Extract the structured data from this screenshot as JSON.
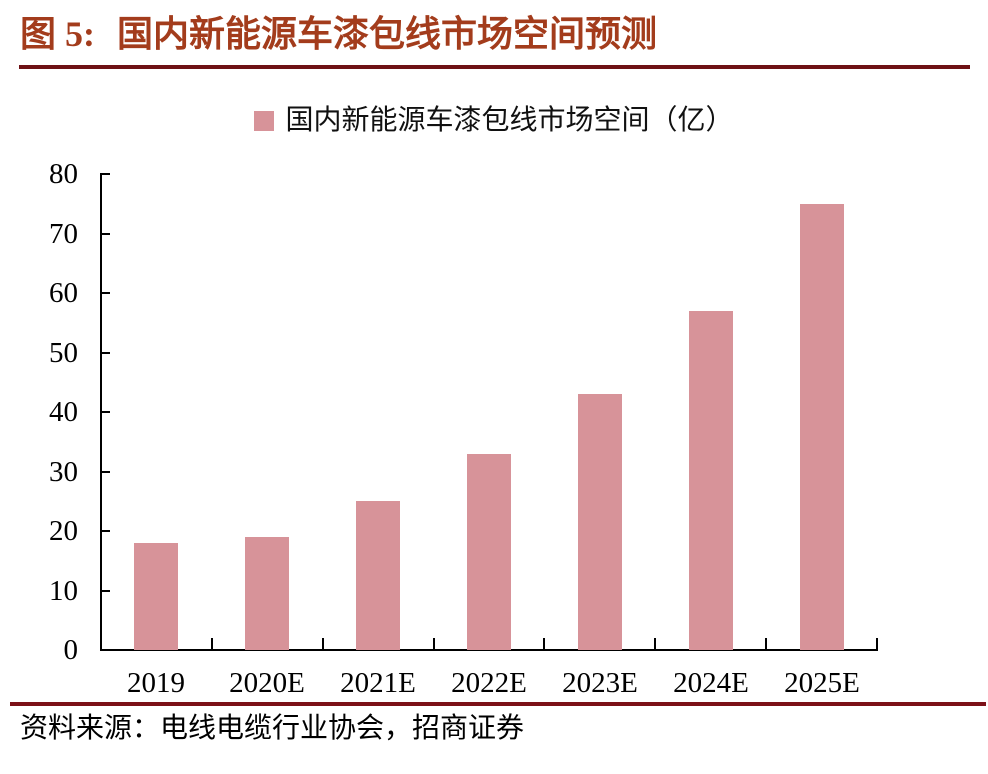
{
  "header": {
    "figure_label": "图 5:",
    "title": "国内新能源车漆包线市场空间预测"
  },
  "chart_data": {
    "type": "bar",
    "title": "国内新能源车漆包线市场空间预测",
    "legend_label": "国内新能源车漆包线市场空间（亿）",
    "legend_position": "top-center",
    "categories": [
      "2019",
      "2020E",
      "2021E",
      "2022E",
      "2023E",
      "2024E",
      "2025E"
    ],
    "values": [
      18,
      19,
      25,
      33,
      43,
      57,
      75
    ],
    "unit": "亿",
    "xlabel": "",
    "ylabel": "",
    "ylim": [
      0,
      80
    ],
    "yticks": [
      0,
      10,
      20,
      30,
      40,
      50,
      60,
      70,
      80
    ],
    "grid": false,
    "bar_color": "#d79399",
    "axis_color": "#000000"
  },
  "footer": {
    "source": "资料来源：电线电缆行业协会，招商证券"
  },
  "colors": {
    "title": "#a33c1c",
    "header_rule": "#6e1115",
    "footer_rule": "#7c1118",
    "text": "#000000",
    "background": "#ffffff"
  }
}
